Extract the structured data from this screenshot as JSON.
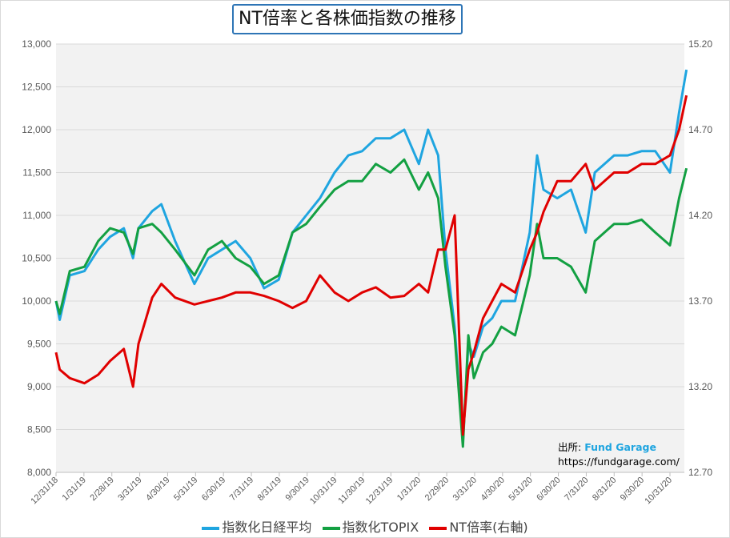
{
  "chart_data": {
    "type": "line",
    "title": "NT倍率と各株価指数の推移",
    "x_ticks": [
      "12/31/18",
      "1/31/19",
      "2/28/19",
      "3/31/19",
      "4/30/19",
      "5/31/19",
      "6/30/19",
      "7/31/19",
      "8/31/19",
      "9/30/19",
      "10/31/19",
      "11/30/19",
      "12/31/19",
      "1/31/20",
      "2/29/20",
      "3/31/20",
      "4/30/20",
      "5/31/20",
      "6/30/20",
      "7/31/20",
      "8/31/20",
      "9/30/20",
      "10/31/20"
    ],
    "y_left": {
      "ticks": [
        "8,000",
        "8,500",
        "9,000",
        "9,500",
        "10,000",
        "10,500",
        "11,000",
        "11,500",
        "12,000",
        "12,500",
        "13,000"
      ],
      "range": [
        8000,
        13000
      ]
    },
    "y_right": {
      "ticks": [
        "12.70",
        "13.20",
        "13.70",
        "14.20",
        "14.70",
        "15.20"
      ],
      "range": [
        12.7,
        15.2
      ]
    },
    "grid": true,
    "legend_position": "bottom",
    "dates": [
      "2018-12-31",
      "2019-01-04",
      "2019-01-15",
      "2019-01-31",
      "2019-02-15",
      "2019-02-28",
      "2019-03-15",
      "2019-03-25",
      "2019-03-31",
      "2019-04-15",
      "2019-04-25",
      "2019-05-10",
      "2019-05-31",
      "2019-06-15",
      "2019-06-30",
      "2019-07-15",
      "2019-07-31",
      "2019-08-15",
      "2019-08-31",
      "2019-09-15",
      "2019-09-30",
      "2019-10-15",
      "2019-10-31",
      "2019-11-15",
      "2019-11-30",
      "2019-12-15",
      "2019-12-31",
      "2020-01-15",
      "2020-01-31",
      "2020-02-10",
      "2020-02-21",
      "2020-02-29",
      "2020-03-10",
      "2020-03-19",
      "2020-03-25",
      "2020-03-31",
      "2020-04-10",
      "2020-04-20",
      "2020-04-30",
      "2020-05-15",
      "2020-05-31",
      "2020-06-08",
      "2020-06-15",
      "2020-06-30",
      "2020-07-15",
      "2020-07-31",
      "2020-08-10",
      "2020-08-31",
      "2020-09-15",
      "2020-09-30",
      "2020-10-15",
      "2020-10-31",
      "2020-11-10",
      "2020-11-18"
    ],
    "series": [
      {
        "name": "指数化日経平均",
        "axis": "left",
        "color": "#1fa5e0",
        "values": [
          10000,
          9780,
          10300,
          10350,
          10600,
          10750,
          10850,
          10500,
          10850,
          11050,
          11130,
          10700,
          10200,
          10500,
          10600,
          10700,
          10500,
          10150,
          10250,
          10800,
          11000,
          11200,
          11500,
          11700,
          11750,
          11900,
          11900,
          12000,
          11600,
          12000,
          11700,
          10600,
          9700,
          8350,
          9500,
          9350,
          9700,
          9800,
          10000,
          10000,
          10800,
          11700,
          11300,
          11200,
          11300,
          10800,
          11500,
          11700,
          11700,
          11750,
          11750,
          11500,
          12200,
          12700
        ]
      },
      {
        "name": "指数化TOPIX",
        "axis": "left",
        "color": "#13a042",
        "values": [
          10000,
          9850,
          10350,
          10400,
          10700,
          10850,
          10800,
          10550,
          10850,
          10900,
          10800,
          10600,
          10300,
          10600,
          10700,
          10500,
          10400,
          10200,
          10300,
          10800,
          10900,
          11100,
          11300,
          11400,
          11400,
          11600,
          11500,
          11650,
          11300,
          11500,
          11200,
          10400,
          9600,
          8300,
          9600,
          9100,
          9400,
          9500,
          9700,
          9600,
          10300,
          10900,
          10500,
          10500,
          10400,
          10100,
          10700,
          10900,
          10900,
          10950,
          10800,
          10650,
          11200,
          11550
        ]
      },
      {
        "name": "NT倍率(右軸)",
        "axis": "right",
        "color": "#e00000",
        "values": [
          13.4,
          13.3,
          13.25,
          13.22,
          13.27,
          13.35,
          13.42,
          13.2,
          13.45,
          13.72,
          13.8,
          13.72,
          13.68,
          13.7,
          13.72,
          13.75,
          13.75,
          13.73,
          13.7,
          13.66,
          13.7,
          13.85,
          13.75,
          13.7,
          13.75,
          13.78,
          13.72,
          13.73,
          13.8,
          13.75,
          14.0,
          14.0,
          14.2,
          12.92,
          13.3,
          13.4,
          13.6,
          13.7,
          13.8,
          13.75,
          14.0,
          14.1,
          14.22,
          14.4,
          14.4,
          14.5,
          14.35,
          14.45,
          14.45,
          14.5,
          14.5,
          14.55,
          14.7,
          14.9
        ]
      }
    ]
  },
  "source": {
    "label": "出所:",
    "brand": "Fund Garage",
    "url": "https://fundgarage.com/"
  }
}
